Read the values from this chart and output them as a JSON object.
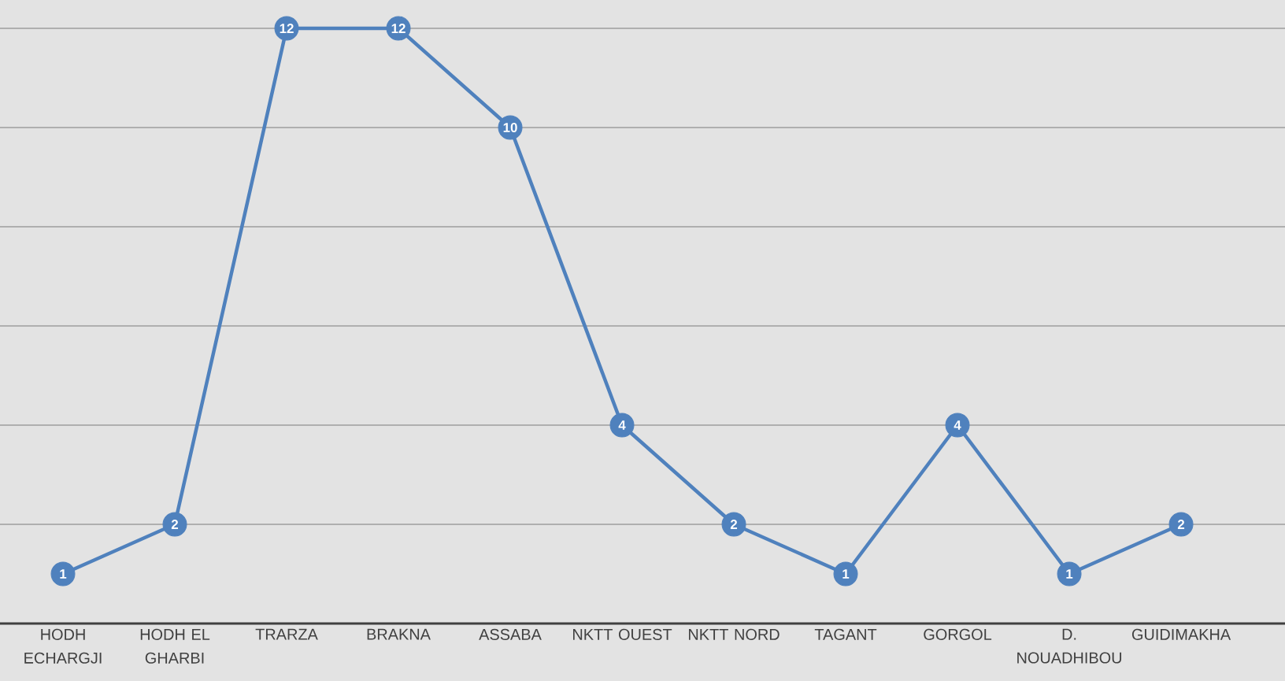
{
  "chart_data": {
    "type": "line",
    "categories": [
      "HODH ECHARGJI",
      "HODH EL GHARBI",
      "TRARZA",
      "BRAKNA",
      "ASSABA",
      "NKTT OUEST",
      "NKTT NORD",
      "TAGANT",
      "GORGOL",
      "D. NOUADHIBOU",
      "GUIDIMAKHA"
    ],
    "values": [
      1,
      2,
      12,
      12,
      10,
      4,
      2,
      1,
      4,
      1,
      2
    ],
    "color": "#4f81bd",
    "grid": "y",
    "tick_labels": "x",
    "marker": "circle",
    "data_labels": true
  }
}
